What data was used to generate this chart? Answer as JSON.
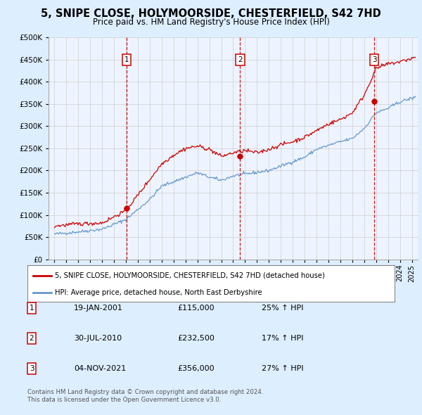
{
  "title": "5, SNIPE CLOSE, HOLYMOORSIDE, CHESTERFIELD, S42 7HD",
  "subtitle": "Price paid vs. HM Land Registry's House Price Index (HPI)",
  "legend_line1": "5, SNIPE CLOSE, HOLYMOORSIDE, CHESTERFIELD, S42 7HD (detached house)",
  "legend_line2": "HPI: Average price, detached house, North East Derbyshire",
  "footnote": "Contains HM Land Registry data © Crown copyright and database right 2024.\nThis data is licensed under the Open Government Licence v3.0.",
  "sales": [
    {
      "num": 1,
      "date": "19-JAN-2001",
      "price": 115000,
      "pct": "25%",
      "dir": "↑"
    },
    {
      "num": 2,
      "date": "30-JUL-2010",
      "price": 232500,
      "pct": "17%",
      "dir": "↑"
    },
    {
      "num": 3,
      "date": "04-NOV-2021",
      "price": 356000,
      "pct": "27%",
      "dir": "↑"
    }
  ],
  "sale_dates_decimal": [
    2001.05,
    2010.58,
    2021.84
  ],
  "sale_prices": [
    115000,
    232500,
    356000
  ],
  "red_color": "#cc0000",
  "blue_color": "#6699cc",
  "background_color": "#ddeeff",
  "plot_bg": "#eef4ff",
  "ylim": [
    0,
    500000
  ],
  "xlim_start": 1994.5,
  "xlim_end": 2025.5
}
